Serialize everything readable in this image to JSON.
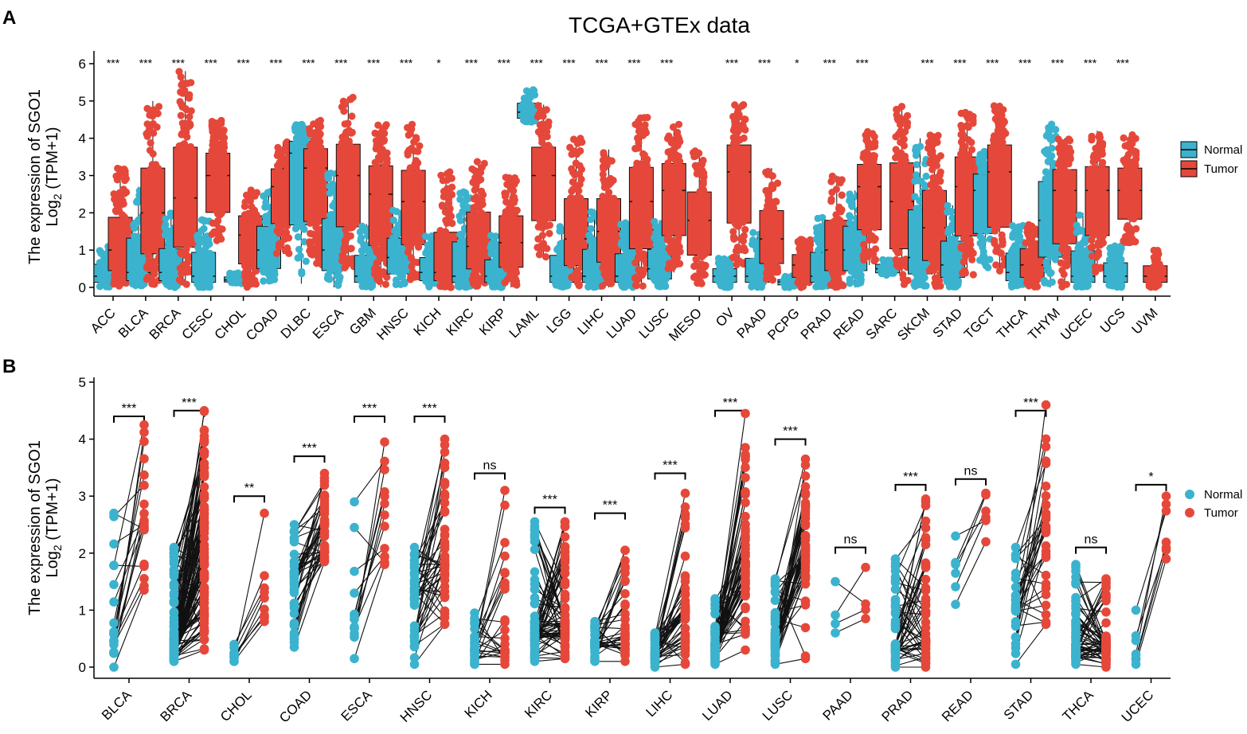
{
  "figure": {
    "panel_a": "A",
    "panel_b": "B"
  },
  "colors": {
    "normal": "#3BB3CE",
    "tumor": "#E5483A",
    "axis": "#000000",
    "line": "#111111"
  },
  "chart_data": [
    {
      "type": "box",
      "title": "TCGA+GTEx data",
      "ylabel_line1": "The expression of SGO1",
      "ylabel_line2": "Log",
      "ylabel_sub": "2",
      "ylabel_tail": " (TPM+1)",
      "ylim": [
        0,
        6
      ],
      "yticks": [
        "0",
        "1",
        "2",
        "3",
        "4",
        "5",
        "6"
      ],
      "legend": {
        "position": "right",
        "entries": [
          "Normal",
          "Tumor"
        ]
      },
      "categories": [
        "ACC",
        "BLCA",
        "BRCA",
        "CESC",
        "CHOL",
        "COAD",
        "DLBC",
        "ESCA",
        "GBM",
        "HNSC",
        "KICH",
        "KIRC",
        "KIRP",
        "LAML",
        "LGG",
        "LIHC",
        "LUAD",
        "LUSC",
        "MESO",
        "OV",
        "PAAD",
        "PCPG",
        "PRAD",
        "READ",
        "SARC",
        "SKCM",
        "STAD",
        "TGCT",
        "THCA",
        "THYM",
        "UCEC",
        "UCS",
        "UVM"
      ],
      "significance": [
        "***",
        "***",
        "***",
        "***",
        "***",
        "***",
        "***",
        "***",
        "***",
        "***",
        "*",
        "***",
        "***",
        "***",
        "***",
        "***",
        "***",
        "***",
        "",
        "***",
        "***",
        "*",
        "***",
        "***",
        "",
        "***",
        "***",
        "***",
        "***",
        "***",
        "***",
        "***",
        ""
      ],
      "normal": [
        [
          0.0,
          1.1,
          0.3
        ],
        [
          0.0,
          2.7,
          0.4
        ],
        [
          0.0,
          2.0,
          0.4
        ],
        [
          0.0,
          1.9,
          0.3
        ],
        [
          0.1,
          0.4,
          0.2
        ],
        [
          0.1,
          2.6,
          1.0
        ],
        [
          0.1,
          4.4,
          3.6
        ],
        [
          0.0,
          3.1,
          1.0
        ],
        [
          0.0,
          1.7,
          0.3
        ],
        [
          0.0,
          2.1,
          0.8
        ],
        [
          0.0,
          1.4,
          0.4
        ],
        [
          0.0,
          2.6,
          0.3
        ],
        [
          0.0,
          1.4,
          0.3
        ],
        [
          4.4,
          5.3,
          4.7
        ],
        [
          0.0,
          1.7,
          0.3
        ],
        [
          0.0,
          2.1,
          0.3
        ],
        [
          0.0,
          1.8,
          0.3
        ],
        [
          0.0,
          1.8,
          0.5
        ],
        null,
        [
          0.0,
          0.8,
          0.3
        ],
        [
          0.0,
          1.5,
          0.3
        ],
        [
          0.0,
          0.3,
          0.15
        ],
        [
          0.0,
          1.9,
          0.3
        ],
        [
          0.0,
          2.6,
          1.0
        ],
        [
          0.3,
          0.8,
          0.5
        ],
        [
          0.0,
          4.0,
          0.8
        ],
        [
          0.0,
          2.2,
          0.6
        ],
        [
          0.5,
          3.7,
          2.6
        ],
        [
          0.0,
          1.7,
          0.4
        ],
        [
          0.0,
          4.4,
          1.8
        ],
        [
          0.0,
          2.0,
          0.3
        ],
        [
          0.0,
          1.2,
          0.3
        ],
        null
      ],
      "tumor": [
        [
          0.0,
          3.2,
          1.0
        ],
        [
          0.0,
          5.0,
          2.0
        ],
        [
          0.0,
          5.8,
          2.4
        ],
        [
          1.2,
          4.5,
          3.0
        ],
        [
          0.0,
          2.7,
          1.4
        ],
        [
          0.9,
          3.9,
          2.7
        ],
        [
          0.6,
          4.5,
          3.2
        ],
        [
          0.5,
          5.1,
          3.0
        ],
        [
          0.0,
          4.4,
          2.5
        ],
        [
          0.2,
          4.4,
          2.3
        ],
        [
          0.0,
          3.1,
          0.4
        ],
        [
          0.0,
          3.4,
          1.1
        ],
        [
          0.0,
          3.0,
          1.2
        ],
        [
          0.8,
          4.9,
          3.0
        ],
        [
          0.0,
          4.0,
          1.3
        ],
        [
          0.0,
          3.7,
          1.5
        ],
        [
          0.0,
          4.6,
          2.3
        ],
        [
          0.4,
          4.4,
          2.6
        ],
        [
          0.1,
          3.7,
          1.8
        ],
        [
          0.6,
          4.9,
          3.1
        ],
        [
          0.1,
          3.2,
          1.3
        ],
        [
          0.0,
          1.3,
          0.6
        ],
        [
          0.0,
          3.0,
          1.0
        ],
        [
          0.6,
          4.2,
          2.7
        ],
        [
          0.0,
          4.9,
          2.3
        ],
        [
          0.0,
          4.1,
          1.6
        ],
        [
          0.3,
          4.7,
          2.7
        ],
        [
          0.4,
          4.9,
          3.1
        ],
        [
          0.0,
          1.7,
          0.6
        ],
        [
          0.0,
          4.0,
          2.6
        ],
        [
          0.4,
          4.2,
          2.6
        ],
        [
          1.2,
          4.1,
          2.6
        ],
        [
          0.0,
          1.0,
          0.3
        ]
      ]
    },
    {
      "type": "paired-scatter",
      "ylabel_line1": "The expression of SGO1",
      "ylabel_line2": "Log",
      "ylabel_sub": "2",
      "ylabel_tail": " (TPM+1)",
      "ylim": [
        0,
        5
      ],
      "yticks": [
        "0",
        "1",
        "2",
        "3",
        "4",
        "5"
      ],
      "legend": {
        "position": "right",
        "entries": [
          "Normal",
          "Tumor"
        ]
      },
      "categories": [
        "BLCA",
        "BRCA",
        "CHOL",
        "COAD",
        "ESCA",
        "HNSC",
        "KICH",
        "KIRC",
        "KIRP",
        "LIHC",
        "LUAD",
        "LUSC",
        "PAAD",
        "PRAD",
        "READ",
        "STAD",
        "THCA",
        "UCEC"
      ],
      "significance": [
        "***",
        "***",
        "**",
        "***",
        "***",
        "***",
        "ns",
        "***",
        "***",
        "***",
        "***",
        "***",
        "ns",
        "***",
        "ns",
        "***",
        "ns",
        "*"
      ],
      "bracket_level": [
        4.4,
        4.5,
        3.0,
        3.7,
        4.4,
        4.4,
        3.4,
        2.8,
        2.7,
        3.4,
        4.5,
        4.0,
        2.1,
        3.2,
        3.3,
        4.5,
        2.1,
        3.2
      ],
      "normal_range": [
        [
          0.0,
          2.7,
          0.6
        ],
        [
          0.1,
          2.1,
          0.5
        ],
        [
          0.1,
          0.4,
          0.2
        ],
        [
          0.35,
          2.5,
          1.6
        ],
        [
          0.15,
          2.9,
          0.9
        ],
        [
          0.05,
          2.1,
          1.2
        ],
        [
          0.05,
          0.95,
          0.3
        ],
        [
          0.1,
          2.55,
          0.6
        ],
        [
          0.1,
          0.8,
          0.4
        ],
        [
          0.0,
          0.6,
          0.2
        ],
        [
          0.05,
          1.2,
          0.4
        ],
        [
          0.05,
          1.55,
          0.5
        ],
        [
          0.6,
          1.5,
          0.7
        ],
        [
          0.0,
          1.9,
          0.4
        ],
        [
          1.1,
          2.3,
          1.8
        ],
        [
          0.05,
          2.1,
          1.0
        ],
        [
          0.05,
          1.8,
          0.4
        ],
        [
          0.05,
          1.0,
          0.3
        ]
      ],
      "tumor_range": [
        [
          1.35,
          4.25,
          2.5
        ],
        [
          0.3,
          4.5,
          1.8
        ],
        [
          0.8,
          2.7,
          1.4
        ],
        [
          1.85,
          3.4,
          2.5
        ],
        [
          1.8,
          3.95,
          3.0
        ],
        [
          0.75,
          4.0,
          1.8
        ],
        [
          0.05,
          3.1,
          0.3
        ],
        [
          0.15,
          2.55,
          0.8
        ],
        [
          0.1,
          2.05,
          0.6
        ],
        [
          0.05,
          3.05,
          1.0
        ],
        [
          0.3,
          4.45,
          1.8
        ],
        [
          0.15,
          3.65,
          2.1
        ],
        [
          0.85,
          1.75,
          1.1
        ],
        [
          0.0,
          2.95,
          0.5
        ],
        [
          2.2,
          3.05,
          2.6
        ],
        [
          0.75,
          4.6,
          2.4
        ],
        [
          0.0,
          1.55,
          0.4
        ],
        [
          1.9,
          3.0,
          2.6
        ]
      ],
      "pair_counts": [
        19,
        110,
        9,
        41,
        13,
        44,
        25,
        72,
        32,
        50,
        58,
        49,
        4,
        52,
        6,
        32,
        59,
        7
      ]
    }
  ]
}
